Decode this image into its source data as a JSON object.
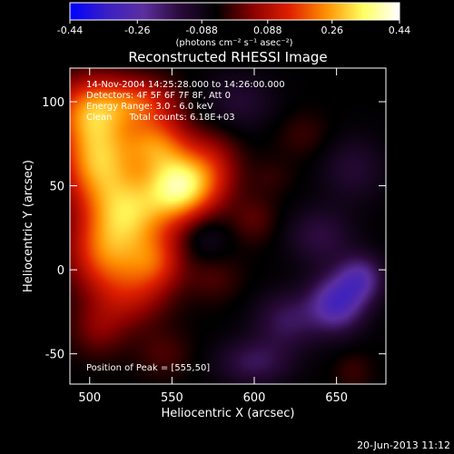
{
  "chart_data": {
    "type": "heatmap",
    "title": "Reconstructed RHESSI Image",
    "xlabel": "Heliocentric X (arcsec)",
    "ylabel": "Heliocentric Y (arcsec)",
    "xlim": [
      488,
      680
    ],
    "ylim": [
      -68,
      120
    ],
    "xticks": [
      500,
      550,
      600,
      650
    ],
    "yticks": [
      -50,
      0,
      50,
      100
    ],
    "colorbar": {
      "min": -0.44,
      "max": 0.44,
      "ticks": [
        "-0.44",
        "-0.26",
        "-0.088",
        "0.088",
        "0.26",
        "0.44"
      ],
      "tick_values": [
        -0.44,
        -0.26,
        -0.088,
        0.088,
        0.26,
        0.44
      ],
      "units_label": "(photons cm⁻² s⁻¹ asec⁻²)",
      "colors": [
        "#0000ff",
        "#3a1fc4",
        "#5c2fa0",
        "#2a0a3a",
        "#000000",
        "#8b0000",
        "#e02000",
        "#ff9000",
        "#ffff60",
        "#ffffff"
      ]
    },
    "annotations": [
      "14-Nov-2004 14:25:28.000 to 14:26:00.000",
      "Detectors: 4F 5F 6F 7F 8F, Att 0",
      "Energy Range: 3.0 - 6.0 keV",
      "Clean      Total counts: 6.18E+03"
    ],
    "peak_label": "Position of Peak = [555,50]",
    "peak": [
      555,
      50
    ],
    "blobs": [
      {
        "x": 555,
        "y": 50,
        "sx": 14,
        "sy": 14,
        "v": 0.36
      },
      {
        "x": 525,
        "y": 35,
        "sx": 18,
        "sy": 16,
        "v": 0.28
      },
      {
        "x": 505,
        "y": 65,
        "sx": 16,
        "sy": 18,
        "v": 0.3
      },
      {
        "x": 540,
        "y": 75,
        "sx": 14,
        "sy": 12,
        "v": 0.22
      },
      {
        "x": 500,
        "y": 95,
        "sx": 16,
        "sy": 14,
        "v": 0.24
      },
      {
        "x": 530,
        "y": 100,
        "sx": 16,
        "sy": 10,
        "v": 0.18
      },
      {
        "x": 510,
        "y": 10,
        "sx": 16,
        "sy": 16,
        "v": 0.22
      },
      {
        "x": 540,
        "y": 5,
        "sx": 12,
        "sy": 12,
        "v": 0.16
      },
      {
        "x": 525,
        "y": -15,
        "sx": 16,
        "sy": 14,
        "v": 0.12
      },
      {
        "x": 505,
        "y": -35,
        "sx": 12,
        "sy": 12,
        "v": 0.08
      },
      {
        "x": 575,
        "y": 60,
        "sx": 12,
        "sy": 16,
        "v": 0.12
      },
      {
        "x": 600,
        "y": 30,
        "sx": 10,
        "sy": 10,
        "v": 0.06
      },
      {
        "x": 630,
        "y": 80,
        "sx": 12,
        "sy": 10,
        "v": 0.04
      },
      {
        "x": 610,
        "y": 55,
        "sx": 10,
        "sy": 8,
        "v": 0.03
      },
      {
        "x": 575,
        "y": -5,
        "sx": 12,
        "sy": 10,
        "v": 0.05
      },
      {
        "x": 545,
        "y": -50,
        "sx": 12,
        "sy": 10,
        "v": 0.05
      },
      {
        "x": 650,
        "y": -20,
        "sx": 12,
        "sy": 12,
        "v": -0.24
      },
      {
        "x": 665,
        "y": -5,
        "sx": 10,
        "sy": 10,
        "v": -0.18
      },
      {
        "x": 620,
        "y": -30,
        "sx": 14,
        "sy": 12,
        "v": -0.12
      },
      {
        "x": 640,
        "y": 20,
        "sx": 14,
        "sy": 12,
        "v": -0.1
      },
      {
        "x": 600,
        "y": -55,
        "sx": 16,
        "sy": 10,
        "v": -0.12
      },
      {
        "x": 660,
        "y": 60,
        "sx": 14,
        "sy": 14,
        "v": -0.08
      },
      {
        "x": 590,
        "y": 100,
        "sx": 16,
        "sy": 12,
        "v": -0.08
      },
      {
        "x": 570,
        "y": 20,
        "sx": 10,
        "sy": 10,
        "v": -0.06
      },
      {
        "x": 660,
        "y": -60,
        "sx": 8,
        "sy": 8,
        "v": 0.04
      }
    ],
    "background": -0.05
  },
  "footer": {
    "timestamp": "20-Jun-2013 11:12"
  }
}
